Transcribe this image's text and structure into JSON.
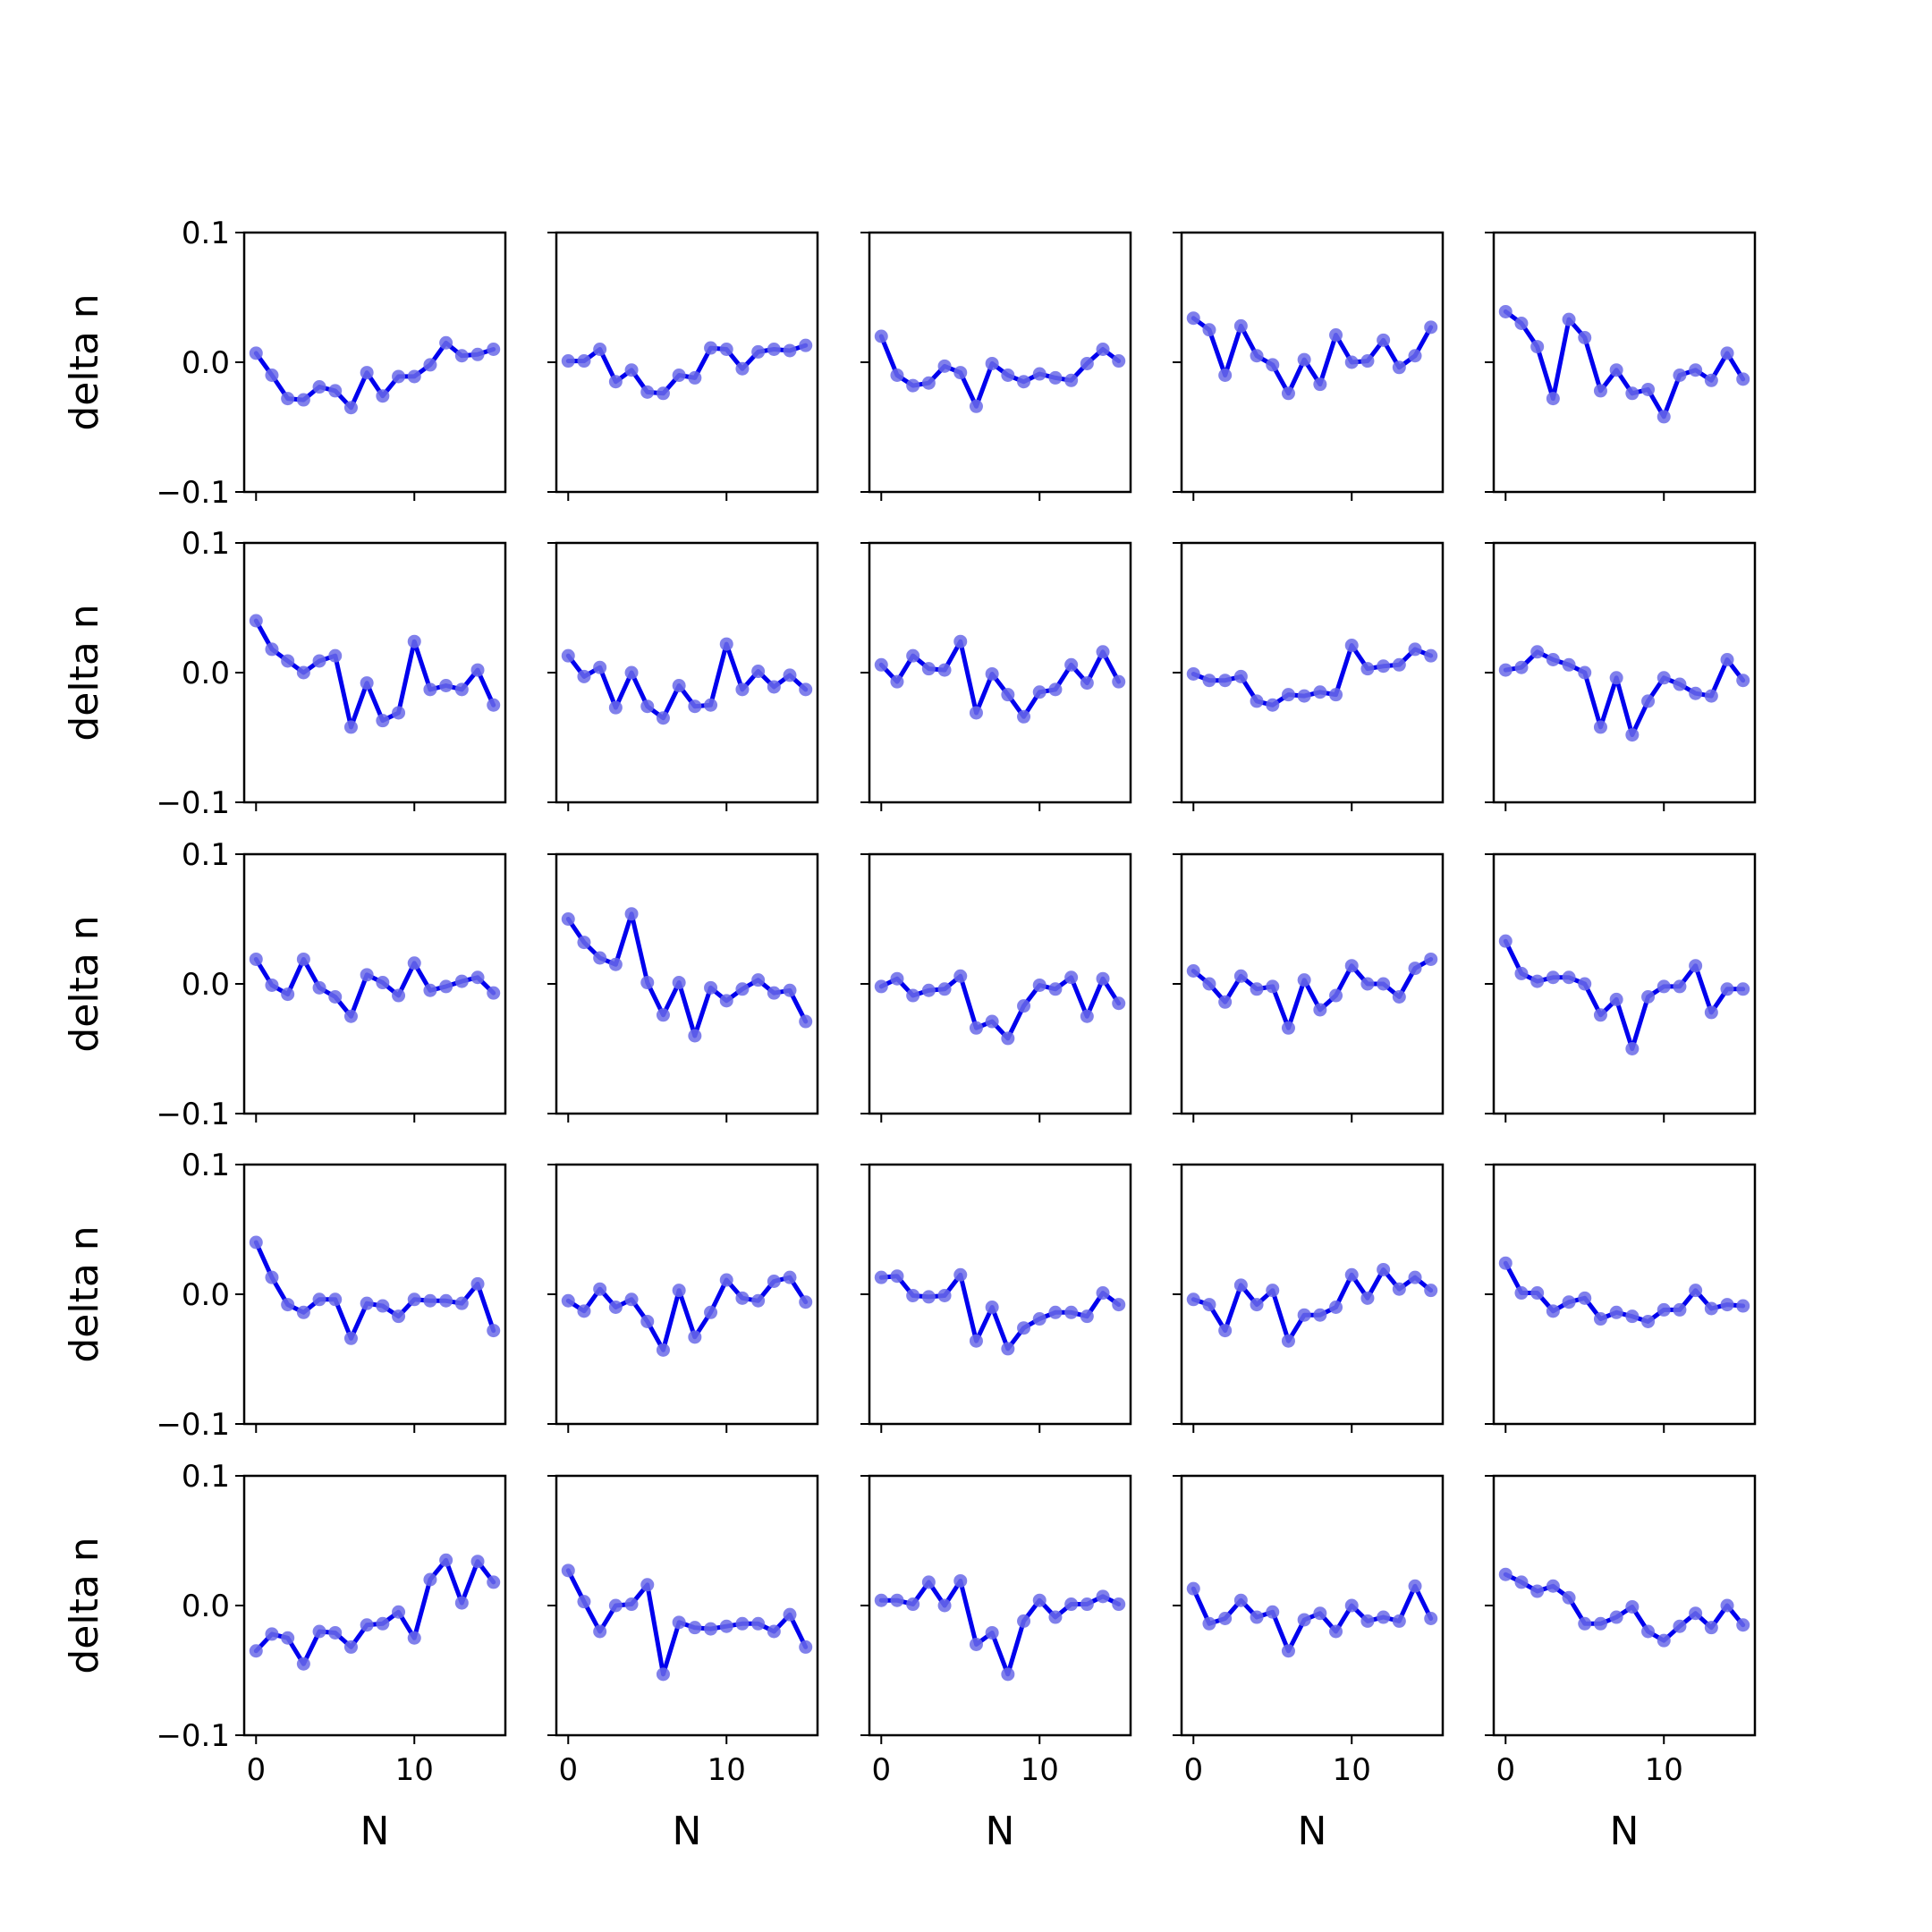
{
  "figure": {
    "series_color": "#0000ee",
    "marker_color": "#6a6ae8",
    "axes_color": "#000000"
  },
  "chart_data": {
    "type": "line",
    "layout": "5x5 grid of subplots, shared axes",
    "xlabel": "N",
    "ylabel": "delta n",
    "xlim": [
      -0.75,
      15.75
    ],
    "ylim": [
      -0.1,
      0.1
    ],
    "xticks": [
      0,
      10
    ],
    "xtick_labels": [
      "0",
      "10"
    ],
    "yticks": [
      0.1,
      0.0,
      -0.1
    ],
    "ytick_labels": [
      "0.1",
      "0.0",
      "−0.1"
    ],
    "x": [
      0,
      1,
      2,
      3,
      4,
      5,
      6,
      7,
      8,
      9,
      10,
      11,
      12,
      13,
      14,
      15
    ],
    "panels": [
      {
        "row": 1,
        "col": 1,
        "values": [
          0.007,
          -0.01,
          -0.028,
          -0.029,
          -0.019,
          -0.022,
          -0.035,
          -0.008,
          -0.026,
          -0.011,
          -0.011,
          -0.002,
          0.015,
          0.005,
          0.006,
          0.01
        ]
      },
      {
        "row": 1,
        "col": 2,
        "values": [
          0.001,
          0.001,
          0.01,
          -0.015,
          -0.006,
          -0.023,
          -0.024,
          -0.01,
          -0.012,
          0.011,
          0.01,
          -0.005,
          0.008,
          0.01,
          0.009,
          0.013
        ]
      },
      {
        "row": 1,
        "col": 3,
        "values": [
          0.02,
          -0.01,
          -0.018,
          -0.016,
          -0.003,
          -0.008,
          -0.034,
          -0.001,
          -0.01,
          -0.015,
          -0.009,
          -0.012,
          -0.014,
          -0.001,
          0.01,
          0.001
        ]
      },
      {
        "row": 1,
        "col": 4,
        "values": [
          0.034,
          0.025,
          -0.01,
          0.028,
          0.005,
          -0.002,
          -0.024,
          0.002,
          -0.017,
          0.021,
          0.0,
          0.001,
          0.017,
          -0.004,
          0.005,
          0.027
        ]
      },
      {
        "row": 1,
        "col": 5,
        "values": [
          0.039,
          0.03,
          0.012,
          -0.028,
          0.033,
          0.019,
          -0.022,
          -0.006,
          -0.024,
          -0.021,
          -0.042,
          -0.01,
          -0.006,
          -0.014,
          0.007,
          -0.013
        ]
      },
      {
        "row": 2,
        "col": 1,
        "values": [
          0.04,
          0.018,
          0.009,
          0.0,
          0.009,
          0.013,
          -0.042,
          -0.008,
          -0.037,
          -0.031,
          0.024,
          -0.013,
          -0.01,
          -0.013,
          0.002,
          -0.025
        ]
      },
      {
        "row": 2,
        "col": 2,
        "values": [
          0.013,
          -0.003,
          0.004,
          -0.027,
          0.0,
          -0.026,
          -0.035,
          -0.01,
          -0.026,
          -0.025,
          0.022,
          -0.013,
          0.001,
          -0.011,
          -0.002,
          -0.013
        ]
      },
      {
        "row": 2,
        "col": 3,
        "values": [
          0.006,
          -0.007,
          0.013,
          0.003,
          0.002,
          0.024,
          -0.031,
          -0.001,
          -0.017,
          -0.034,
          -0.015,
          -0.013,
          0.006,
          -0.008,
          0.016,
          -0.007
        ]
      },
      {
        "row": 2,
        "col": 4,
        "values": [
          -0.001,
          -0.006,
          -0.006,
          -0.003,
          -0.022,
          -0.025,
          -0.017,
          -0.018,
          -0.015,
          -0.017,
          0.021,
          0.003,
          0.005,
          0.006,
          0.018,
          0.013
        ]
      },
      {
        "row": 2,
        "col": 5,
        "values": [
          0.002,
          0.004,
          0.016,
          0.01,
          0.006,
          0.0,
          -0.042,
          -0.004,
          -0.048,
          -0.022,
          -0.004,
          -0.009,
          -0.016,
          -0.018,
          0.01,
          -0.006
        ]
      },
      {
        "row": 3,
        "col": 1,
        "values": [
          0.019,
          -0.001,
          -0.008,
          0.019,
          -0.003,
          -0.01,
          -0.025,
          0.007,
          0.001,
          -0.009,
          0.016,
          -0.005,
          -0.002,
          0.002,
          0.005,
          -0.007
        ]
      },
      {
        "row": 3,
        "col": 2,
        "values": [
          0.05,
          0.032,
          0.02,
          0.015,
          0.054,
          0.001,
          -0.024,
          0.001,
          -0.04,
          -0.003,
          -0.013,
          -0.004,
          0.003,
          -0.007,
          -0.005,
          -0.029
        ]
      },
      {
        "row": 3,
        "col": 3,
        "values": [
          -0.002,
          0.004,
          -0.009,
          -0.005,
          -0.004,
          0.006,
          -0.034,
          -0.029,
          -0.042,
          -0.017,
          -0.001,
          -0.004,
          0.005,
          -0.025,
          0.004,
          -0.015
        ]
      },
      {
        "row": 3,
        "col": 4,
        "values": [
          0.01,
          0.0,
          -0.014,
          0.006,
          -0.004,
          -0.002,
          -0.034,
          0.003,
          -0.02,
          -0.009,
          0.014,
          0.0,
          0.0,
          -0.01,
          0.012,
          0.019
        ]
      },
      {
        "row": 3,
        "col": 5,
        "values": [
          0.033,
          0.008,
          0.002,
          0.005,
          0.005,
          0.0,
          -0.024,
          -0.012,
          -0.05,
          -0.01,
          -0.002,
          -0.002,
          0.014,
          -0.022,
          -0.004,
          -0.004
        ]
      },
      {
        "row": 4,
        "col": 1,
        "values": [
          0.04,
          0.013,
          -0.008,
          -0.014,
          -0.004,
          -0.004,
          -0.034,
          -0.007,
          -0.009,
          -0.017,
          -0.004,
          -0.005,
          -0.005,
          -0.007,
          0.008,
          -0.028
        ]
      },
      {
        "row": 4,
        "col": 2,
        "values": [
          -0.005,
          -0.013,
          0.004,
          -0.01,
          -0.004,
          -0.021,
          -0.043,
          0.003,
          -0.033,
          -0.014,
          0.011,
          -0.003,
          -0.005,
          0.01,
          0.013,
          -0.006
        ]
      },
      {
        "row": 4,
        "col": 3,
        "values": [
          0.013,
          0.014,
          -0.001,
          -0.002,
          -0.001,
          0.015,
          -0.036,
          -0.01,
          -0.042,
          -0.026,
          -0.019,
          -0.014,
          -0.014,
          -0.017,
          0.001,
          -0.008
        ]
      },
      {
        "row": 4,
        "col": 4,
        "values": [
          -0.004,
          -0.008,
          -0.028,
          0.007,
          -0.008,
          0.003,
          -0.036,
          -0.016,
          -0.016,
          -0.01,
          0.015,
          -0.003,
          0.019,
          0.004,
          0.013,
          0.003
        ]
      },
      {
        "row": 4,
        "col": 5,
        "values": [
          0.024,
          0.001,
          0.001,
          -0.013,
          -0.006,
          -0.003,
          -0.019,
          -0.014,
          -0.017,
          -0.021,
          -0.012,
          -0.012,
          0.003,
          -0.011,
          -0.008,
          -0.009
        ]
      },
      {
        "row": 5,
        "col": 1,
        "values": [
          -0.035,
          -0.022,
          -0.025,
          -0.045,
          -0.02,
          -0.021,
          -0.032,
          -0.015,
          -0.014,
          -0.005,
          -0.025,
          0.02,
          0.035,
          0.002,
          0.034,
          0.018
        ]
      },
      {
        "row": 5,
        "col": 2,
        "values": [
          0.027,
          0.003,
          -0.02,
          0.0,
          0.001,
          0.016,
          -0.053,
          -0.013,
          -0.017,
          -0.018,
          -0.016,
          -0.014,
          -0.014,
          -0.02,
          -0.007,
          -0.032
        ]
      },
      {
        "row": 5,
        "col": 3,
        "values": [
          0.004,
          0.004,
          0.001,
          0.018,
          0.0,
          0.019,
          -0.03,
          -0.021,
          -0.053,
          -0.012,
          0.004,
          -0.009,
          0.001,
          0.001,
          0.007,
          0.001
        ]
      },
      {
        "row": 5,
        "col": 4,
        "values": [
          0.013,
          -0.014,
          -0.01,
          0.004,
          -0.009,
          -0.005,
          -0.035,
          -0.011,
          -0.006,
          -0.02,
          0.0,
          -0.012,
          -0.009,
          -0.012,
          0.015,
          -0.01
        ]
      },
      {
        "row": 5,
        "col": 5,
        "values": [
          0.024,
          0.018,
          0.011,
          0.015,
          0.006,
          -0.014,
          -0.014,
          -0.009,
          -0.001,
          -0.02,
          -0.027,
          -0.016,
          -0.006,
          -0.017,
          0.0,
          -0.015
        ]
      }
    ]
  }
}
